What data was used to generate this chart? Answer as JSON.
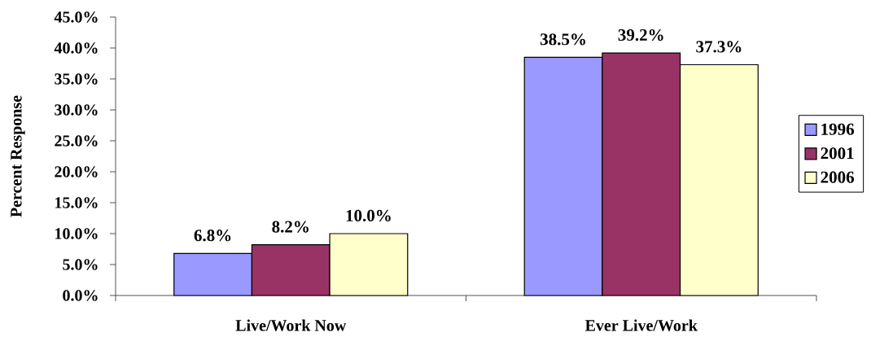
{
  "chart_data": {
    "type": "bar",
    "ylabel": "Percent Response",
    "categories": [
      "Live/Work Now",
      "Ever Live/Work"
    ],
    "series": [
      {
        "name": "1996",
        "color": "#9999ff",
        "values": [
          6.8,
          38.5
        ],
        "value_labels": [
          "6.8%",
          "38.5%"
        ]
      },
      {
        "name": "2001",
        "color": "#993366",
        "values": [
          8.2,
          39.2
        ],
        "value_labels": [
          "8.2%",
          "39.2%"
        ]
      },
      {
        "name": "2006",
        "color": "#ffffcc",
        "values": [
          10.0,
          37.3
        ],
        "value_labels": [
          "10.0%",
          "37.3%"
        ]
      }
    ],
    "ylim": [
      0,
      45
    ],
    "yticks": [
      {
        "value": 0,
        "label": "0.0%"
      },
      {
        "value": 5,
        "label": "5.0%"
      },
      {
        "value": 10,
        "label": "10.0%"
      },
      {
        "value": 15,
        "label": "15.0%"
      },
      {
        "value": 20,
        "label": "20.0%"
      },
      {
        "value": 25,
        "label": "25.0%"
      },
      {
        "value": 30,
        "label": "30.0%"
      },
      {
        "value": 35,
        "label": "35.0%"
      },
      {
        "value": 40,
        "label": "40.0%"
      },
      {
        "value": 45,
        "label": "45.0%"
      }
    ],
    "legend": "right"
  }
}
